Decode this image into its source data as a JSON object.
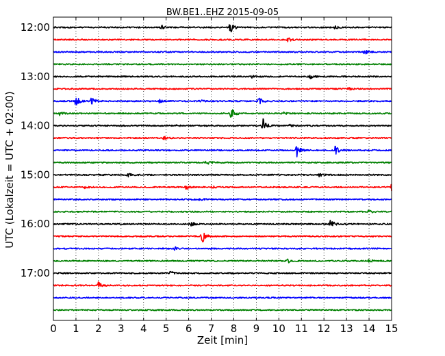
{
  "chart_data": {
    "type": "line",
    "title": "BW.BE1..EHZ 2015-09-05",
    "xlabel": "Zeit  [min]",
    "ylabel": "UTC (Lokalzeit = UTC + 02:00)",
    "xlim": [
      0,
      15
    ],
    "x_ticks": [
      0,
      1,
      2,
      3,
      4,
      5,
      6,
      7,
      8,
      9,
      10,
      11,
      12,
      13,
      14,
      15
    ],
    "y_tick_labels": [
      "12:00",
      "13:00",
      "14:00",
      "15:00",
      "16:00",
      "17:00"
    ],
    "grid": "vertical dotted",
    "trace_colors": [
      "#000000",
      "#ff0000",
      "#0000ff",
      "#008000"
    ],
    "traces": [
      {
        "start": "12:00",
        "events": [
          {
            "t": 4.8,
            "amp": 0.25
          },
          {
            "t": 7.85,
            "amp": 0.85
          },
          {
            "t": 12.5,
            "amp": 0.2
          }
        ]
      },
      {
        "start": "12:15",
        "events": [
          {
            "t": 10.4,
            "amp": 0.3
          }
        ]
      },
      {
        "start": "12:30",
        "events": [
          {
            "t": 13.8,
            "amp": 0.3
          }
        ]
      },
      {
        "start": "12:45",
        "events": []
      },
      {
        "start": "13:00",
        "events": [
          {
            "t": 11.4,
            "amp": 0.3
          },
          {
            "t": 8.8,
            "amp": 0.15
          }
        ]
      },
      {
        "start": "13:15",
        "events": [
          {
            "t": 13.1,
            "amp": 0.15
          }
        ]
      },
      {
        "start": "13:30",
        "events": [
          {
            "t": 1.0,
            "amp": 0.7
          },
          {
            "t": 1.7,
            "amp": 0.6
          },
          {
            "t": 9.1,
            "amp": 0.7
          },
          {
            "t": 4.7,
            "amp": 0.2
          },
          {
            "t": 6.5,
            "amp": 0.2
          }
        ]
      },
      {
        "start": "13:45",
        "events": [
          {
            "t": 0.3,
            "amp": 0.3
          },
          {
            "t": 7.9,
            "amp": 0.9
          },
          {
            "t": 10.2,
            "amp": 0.15
          }
        ]
      },
      {
        "start": "14:00",
        "events": [
          {
            "t": 9.3,
            "amp": 0.95
          },
          {
            "t": 5.4,
            "amp": 0.15
          },
          {
            "t": 10.5,
            "amp": 0.2
          }
        ]
      },
      {
        "start": "14:15",
        "events": [
          {
            "t": 4.9,
            "amp": 0.2
          }
        ]
      },
      {
        "start": "14:30",
        "events": [
          {
            "t": 10.8,
            "amp": 0.8
          },
          {
            "t": 12.5,
            "amp": 0.6
          }
        ]
      },
      {
        "start": "14:45",
        "events": [
          {
            "t": 6.8,
            "amp": 0.5
          }
        ]
      },
      {
        "start": "15:00",
        "events": [
          {
            "t": 3.3,
            "amp": 0.35
          },
          {
            "t": 11.8,
            "amp": 0.25
          }
        ]
      },
      {
        "start": "15:15",
        "events": [
          {
            "t": 5.9,
            "amp": 0.3
          },
          {
            "t": 7.0,
            "amp": 0.3
          },
          {
            "t": 15.0,
            "amp": 0.9
          },
          {
            "t": 1.4,
            "amp": 0.15
          }
        ]
      },
      {
        "start": "15:30",
        "events": [
          {
            "t": 6.5,
            "amp": 0.2
          }
        ]
      },
      {
        "start": "15:45",
        "events": [
          {
            "t": 14.0,
            "amp": 0.2
          }
        ]
      },
      {
        "start": "16:00",
        "events": [
          {
            "t": 6.1,
            "amp": 0.3
          },
          {
            "t": 12.3,
            "amp": 0.7
          }
        ]
      },
      {
        "start": "16:15",
        "events": [
          {
            "t": 6.6,
            "amp": 0.9
          }
        ]
      },
      {
        "start": "16:30",
        "events": [
          {
            "t": 5.4,
            "amp": 0.2
          }
        ]
      },
      {
        "start": "16:45",
        "events": [
          {
            "t": 10.4,
            "amp": 0.25
          },
          {
            "t": 14.0,
            "amp": 0.2
          }
        ]
      },
      {
        "start": "17:00",
        "events": [
          {
            "t": 5.2,
            "amp": 0.25
          }
        ]
      },
      {
        "start": "17:15",
        "events": [
          {
            "t": 2.0,
            "amp": 0.5
          }
        ]
      },
      {
        "start": "17:30",
        "events": []
      },
      {
        "start": "17:45",
        "events": []
      }
    ]
  }
}
